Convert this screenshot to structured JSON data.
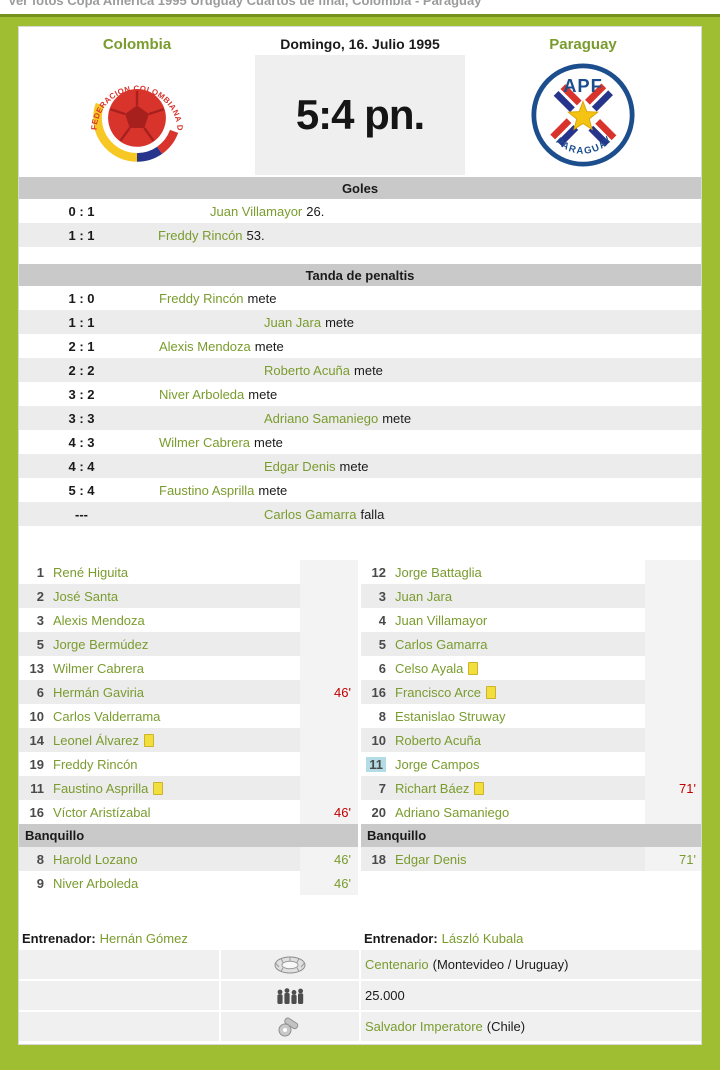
{
  "page": {
    "top_link": "Ver fotos Copa América 1995 Uruguay Cuartos de final, Colombia - Paraguay"
  },
  "header": {
    "home_team": "Colombia",
    "date": "Domingo, 16. Julio 1995",
    "away_team": "Paraguay",
    "score": "5:4 pn."
  },
  "logos": {
    "home": {
      "name": "colombia-federation-logo",
      "arc_text": "FEDERACION COLOMBIANA DE FUTBOL"
    },
    "away": {
      "name": "paraguay-apf-logo",
      "top_text": "APF",
      "bottom_text": "PARAGUAY"
    }
  },
  "goals": {
    "title": "Goles",
    "rows": [
      {
        "score": "0 : 1",
        "player": "Juan Villamayor",
        "detail": "26.",
        "side": "away"
      },
      {
        "score": "1 : 1",
        "player": "Freddy Rincón",
        "detail": "53.",
        "side": "home"
      }
    ]
  },
  "penalties": {
    "title": "Tanda de penaltis",
    "rows": [
      {
        "score": "1 : 0",
        "player": "Freddy Rincón",
        "detail": "mete",
        "side": "home"
      },
      {
        "score": "1 : 1",
        "player": "Juan Jara",
        "detail": "mete",
        "side": "away"
      },
      {
        "score": "2 : 1",
        "player": "Alexis Mendoza",
        "detail": "mete",
        "side": "home"
      },
      {
        "score": "2 : 2",
        "player": "Roberto Acuña",
        "detail": "mete",
        "side": "away"
      },
      {
        "score": "3 : 2",
        "player": "Niver Arboleda",
        "detail": "mete",
        "side": "home"
      },
      {
        "score": "3 : 3",
        "player": "Adriano Samaniego",
        "detail": "mete",
        "side": "away"
      },
      {
        "score": "4 : 3",
        "player": "Wilmer Cabrera",
        "detail": "mete",
        "side": "home"
      },
      {
        "score": "4 : 4",
        "player": "Edgar Denis",
        "detail": "mete",
        "side": "away"
      },
      {
        "score": "5 : 4",
        "player": "Faustino Asprilla",
        "detail": "mete",
        "side": "home"
      },
      {
        "score": "---",
        "player": "Carlos Gamarra",
        "detail": "falla",
        "side": "away"
      }
    ]
  },
  "lineups": {
    "bench_title": "Banquillo",
    "coach_label": "Entrenador:",
    "home": {
      "players": [
        {
          "number": "1",
          "name": "René Higuita"
        },
        {
          "number": "2",
          "name": "José Santa"
        },
        {
          "number": "3",
          "name": "Alexis Mendoza"
        },
        {
          "number": "5",
          "name": "Jorge Bermúdez"
        },
        {
          "number": "13",
          "name": "Wilmer Cabrera"
        },
        {
          "number": "6",
          "name": "Hermán Gaviria",
          "minute": "46'",
          "minute_type": "out"
        },
        {
          "number": "10",
          "name": "Carlos Valderrama"
        },
        {
          "number": "14",
          "name": "Leonel Álvarez",
          "yellow_card": true
        },
        {
          "number": "19",
          "name": "Freddy Rincón"
        },
        {
          "number": "11",
          "name": "Faustino Asprilla",
          "yellow_card": true
        },
        {
          "number": "16",
          "name": "Víctor Aristízabal",
          "minute": "46'",
          "minute_type": "out"
        }
      ],
      "bench": [
        {
          "number": "8",
          "name": "Harold Lozano",
          "minute": "46'",
          "minute_type": "in"
        },
        {
          "number": "9",
          "name": "Niver Arboleda",
          "minute": "46'",
          "minute_type": "in"
        }
      ],
      "coach": "Hernán Gómez"
    },
    "away": {
      "players": [
        {
          "number": "12",
          "name": "Jorge Battaglia"
        },
        {
          "number": "3",
          "name": "Juan Jara"
        },
        {
          "number": "4",
          "name": "Juan Villamayor"
        },
        {
          "number": "5",
          "name": "Carlos Gamarra"
        },
        {
          "number": "6",
          "name": "Celso Ayala",
          "yellow_card": true
        },
        {
          "number": "16",
          "name": "Francisco Arce",
          "yellow_card": true
        },
        {
          "number": "8",
          "name": "Estanislao Struway"
        },
        {
          "number": "10",
          "name": "Roberto Acuña"
        },
        {
          "number": "11",
          "name": "Jorge Campos",
          "number_highlight": true
        },
        {
          "number": "7",
          "name": "Richart Báez",
          "yellow_card": true,
          "minute": "71'",
          "minute_type": "out"
        },
        {
          "number": "20",
          "name": "Adriano Samaniego"
        }
      ],
      "bench": [
        {
          "number": "18",
          "name": "Edgar Denis",
          "minute": "71'",
          "minute_type": "in"
        }
      ],
      "coach": "László Kubala"
    }
  },
  "info": {
    "rows": [
      {
        "icon": "stadium-icon",
        "link": "Centenario",
        "text": "(Montevideo / Uruguay)"
      },
      {
        "icon": "attendance-icon",
        "link": "",
        "text": "25.000"
      },
      {
        "icon": "whistle-icon",
        "link": "Salvador Imperatore",
        "text": "(Chile)"
      }
    ]
  },
  "colors": {
    "background_green": "#9fbe31",
    "dark_green_line": "#76921c",
    "link_green": "#7a9c2e",
    "minute_red": "#c00000",
    "header_bar_gray": "#c9c9c9",
    "row_alt_gray": "#ececec",
    "score_box_gray": "#efefef",
    "gk_number_highlight": "#b3dce6"
  }
}
